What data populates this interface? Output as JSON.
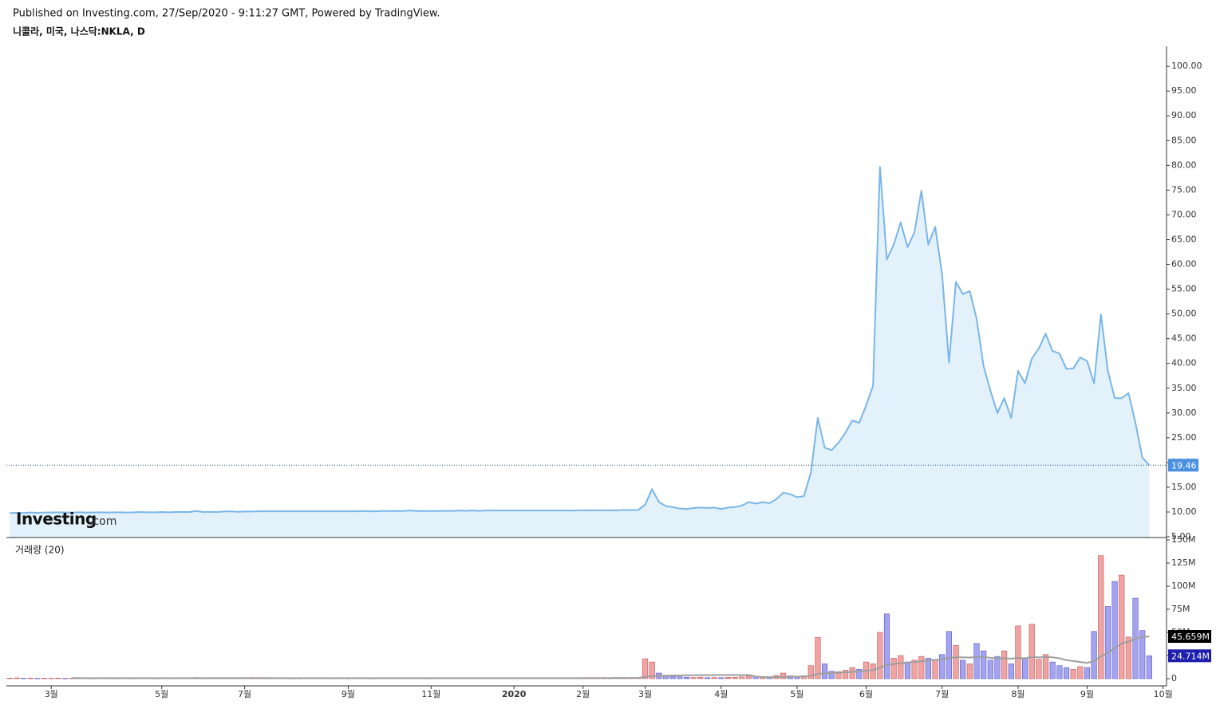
{
  "header": {
    "published": "Published on Investing.com, 27/Sep/2020 - 9:11:27 GMT, Powered by TradingView.",
    "symbol": "니콜라, 미국, 나스닥:NKLA, D"
  },
  "watermark": {
    "brand": "Investing",
    "domain": ".com"
  },
  "chart_data": {
    "type": "area",
    "color": "#7ab6e8",
    "fill": "#e2f1fa",
    "last_value_line": true,
    "last_label_color": "#4a90e2",
    "x": [
      "2019-02",
      "2019-02",
      "2019-02",
      "2019-02",
      "2019-02",
      "2019-02",
      "2019-03",
      "2019-03",
      "2019-03",
      "2019-03",
      "2019-03",
      "2019-03",
      "2019-03",
      "2019-03",
      "2019-03",
      "2019-04",
      "2019-04",
      "2019-04",
      "2019-04",
      "2019-04",
      "2019-04",
      "2019-04",
      "2019-05",
      "2019-05",
      "2019-05",
      "2019-05",
      "2019-05",
      "2019-05",
      "2019-05",
      "2019-06",
      "2019-06",
      "2019-06",
      "2019-06",
      "2019-06",
      "2019-07",
      "2019-07",
      "2019-07",
      "2019-07",
      "2019-07",
      "2019-07",
      "2019-07",
      "2019-07",
      "2019-08",
      "2019-08",
      "2019-08",
      "2019-08",
      "2019-08",
      "2019-08",
      "2019-08",
      "2019-09",
      "2019-09",
      "2019-09",
      "2019-09",
      "2019-09",
      "2019-09",
      "2019-10",
      "2019-10",
      "2019-10",
      "2019-10",
      "2019-10",
      "2019-10",
      "2019-11",
      "2019-11",
      "2019-11",
      "2019-11",
      "2019-11",
      "2019-11",
      "2019-12",
      "2019-12",
      "2019-12",
      "2019-12",
      "2019-12",
      "2019-12",
      "2020-01",
      "2020-01",
      "2020-01",
      "2020-01",
      "2020-01",
      "2020-01",
      "2020-01",
      "2020-01",
      "2020-01",
      "2020-01",
      "2020-02",
      "2020-02",
      "2020-02",
      "2020-02",
      "2020-02",
      "2020-02",
      "2020-02",
      "2020-02",
      "2020-02",
      "2020-03",
      "2020-03",
      "2020-03",
      "2020-03",
      "2020-03",
      "2020-03",
      "2020-03",
      "2020-03",
      "2020-03",
      "2020-03",
      "2020-03",
      "2020-04",
      "2020-04",
      "2020-04",
      "2020-04",
      "2020-04",
      "2020-04",
      "2020-04",
      "2020-04",
      "2020-04",
      "2020-04",
      "2020-04",
      "2020-05",
      "2020-05",
      "2020-05",
      "2020-05",
      "2020-05",
      "2020-05",
      "2020-05",
      "2020-05",
      "2020-05",
      "2020-05",
      "2020-06",
      "2020-06",
      "2020-06",
      "2020-06",
      "2020-06",
      "2020-06",
      "2020-06",
      "2020-06",
      "2020-06",
      "2020-06",
      "2020-06",
      "2020-07",
      "2020-07",
      "2020-07",
      "2020-07",
      "2020-07",
      "2020-07",
      "2020-07",
      "2020-07",
      "2020-07",
      "2020-07",
      "2020-07",
      "2020-08",
      "2020-08",
      "2020-08",
      "2020-08",
      "2020-08",
      "2020-08",
      "2020-08",
      "2020-08",
      "2020-08",
      "2020-08",
      "2020-09",
      "2020-09",
      "2020-09",
      "2020-09",
      "2020-09",
      "2020-09",
      "2020-09",
      "2020-09",
      "2020-09",
      "2020-09",
      "2020-09",
      "2020-10"
    ],
    "values": [
      9.8,
      9.85,
      9.8,
      9.9,
      9.85,
      9.9,
      9.9,
      9.95,
      9.9,
      9.9,
      9.95,
      9.9,
      9.9,
      9.95,
      9.9,
      9.95,
      9.95,
      9.9,
      9.95,
      10.0,
      9.95,
      9.95,
      10.0,
      9.95,
      10.0,
      10.0,
      10.0,
      10.2,
      10.0,
      10.05,
      10.0,
      10.1,
      10.15,
      10.05,
      10.1,
      10.1,
      10.15,
      10.15,
      10.15,
      10.15,
      10.15,
      10.15,
      10.15,
      10.15,
      10.15,
      10.15,
      10.15,
      10.15,
      10.15,
      10.15,
      10.15,
      10.2,
      10.15,
      10.15,
      10.2,
      10.2,
      10.2,
      10.2,
      10.3,
      10.2,
      10.2,
      10.2,
      10.2,
      10.25,
      10.2,
      10.3,
      10.25,
      10.3,
      10.25,
      10.3,
      10.3,
      10.3,
      10.3,
      10.3,
      10.3,
      10.3,
      10.3,
      10.3,
      10.3,
      10.3,
      10.3,
      10.3,
      10.3,
      10.35,
      10.35,
      10.35,
      10.35,
      10.35,
      10.35,
      10.4,
      10.4,
      10.4,
      11.5,
      14.6,
      12.0,
      11.2,
      11.0,
      10.7,
      10.6,
      10.8,
      10.9,
      10.8,
      10.9,
      10.6,
      10.9,
      11.0,
      11.3,
      12.0,
      11.7,
      12.0,
      11.8,
      12.6,
      13.9,
      13.6,
      13.0,
      13.2,
      18.0,
      29.0,
      23.0,
      22.5,
      24.0,
      26.0,
      28.5,
      28.0,
      31.5,
      35.5,
      79.7,
      61.0,
      64.0,
      68.5,
      63.5,
      66.5,
      74.9,
      64.0,
      67.6,
      58.0,
      40.2,
      56.5,
      54.0,
      54.6,
      49.0,
      39.5,
      34.5,
      30.0,
      33.0,
      29.0,
      38.5,
      36.0,
      41.0,
      43.0,
      46.0,
      42.5,
      42.0,
      38.9,
      39.0,
      41.2,
      40.5,
      36.0,
      49.9,
      38.5,
      33.0,
      33.0,
      34.0,
      28.0,
      21.0,
      19.46,
      null,
      null
    ],
    "ylim": [
      4.85,
      104.05
    ],
    "yticks": [
      {
        "value": 5,
        "label": "5.00"
      },
      {
        "value": 10,
        "label": "10.00"
      },
      {
        "value": 15,
        "label": "15.00"
      },
      {
        "value": 20,
        "label": "20.00"
      },
      {
        "value": 25,
        "label": "25.00"
      },
      {
        "value": 30,
        "label": "30.00"
      },
      {
        "value": 35,
        "label": "35.00"
      },
      {
        "value": 40,
        "label": "40.00"
      },
      {
        "value": 45,
        "label": "45.00"
      },
      {
        "value": 50,
        "label": "50.00"
      },
      {
        "value": 55,
        "label": "55.00"
      },
      {
        "value": 60,
        "label": "60.00"
      },
      {
        "value": 65,
        "label": "65.00"
      },
      {
        "value": 70,
        "label": "70.00"
      },
      {
        "value": 75,
        "label": "75.00"
      },
      {
        "value": 80,
        "label": "80.00"
      },
      {
        "value": 85,
        "label": "85.00"
      },
      {
        "value": 90,
        "label": "90.00"
      },
      {
        "value": 95,
        "label": "95.00"
      },
      {
        "value": 100,
        "label": "100.00"
      }
    ],
    "xticks": [
      {
        "value": "2019-03",
        "label": "3월"
      },
      {
        "value": "2019-05",
        "label": "5월"
      },
      {
        "value": "2019-07",
        "label": "7월"
      },
      {
        "value": "2019-09",
        "label": "9월"
      },
      {
        "value": "2019-11",
        "label": "11월"
      },
      {
        "value": "2020-01",
        "label": "2020"
      },
      {
        "value": "2020-02",
        "label": "2월"
      },
      {
        "value": "2020-03",
        "label": "3월"
      },
      {
        "value": "2020-04",
        "label": "4월"
      },
      {
        "value": "2020-05",
        "label": "5월"
      },
      {
        "value": "2020-06",
        "label": "6월"
      },
      {
        "value": "2020-07",
        "label": "7월"
      },
      {
        "value": "2020-08",
        "label": "8월"
      },
      {
        "value": "2020-09",
        "label": "9월"
      },
      {
        "value": "2020-10",
        "label": "10월"
      }
    ],
    "volume": {
      "type": "bar",
      "title": "거래량 (20)",
      "ylim": [
        -7.8,
        152.6
      ],
      "yticks": [
        0,
        {
          "value": 25,
          "label": "25M"
        },
        {
          "value": 50,
          "label": "50M"
        },
        {
          "value": 75,
          "label": "75M"
        },
        {
          "value": 100,
          "label": "100M"
        },
        {
          "value": 125,
          "label": "125M"
        },
        {
          "value": 150,
          "label": "150M"
        }
      ],
      "series": [
        {
          "type": "bar",
          "up_color": "#f0a3a3",
          "down_color": "#a3a3f0",
          "up_stroke": "#c25757",
          "down_stroke": "#5757c2",
          "label_color": "#1f1fae",
          "last_label": "24.714M",
          "values": [
            0.5,
            0.8,
            0.4,
            0.6,
            0.3,
            0.5,
            0.4,
            0.6,
            0.3,
            0.5,
            0.7,
            0.4,
            0.3,
            0.5,
            0.4,
            0.3,
            0.4,
            0.6,
            0.3,
            0.5,
            0.4,
            0.3,
            0.4,
            0.5,
            0.3,
            0.6,
            0.4,
            1.2,
            0.5,
            0.6,
            0.4,
            0.8,
            0.9,
            0.5,
            0.5,
            0.4,
            0.6,
            0.4,
            0.3,
            0.5,
            0.4,
            0.3,
            0.3,
            0.4,
            0.3,
            0.5,
            0.4,
            0.3,
            0.4,
            0.3,
            0.4,
            0.6,
            0.4,
            0.3,
            0.5,
            0.4,
            0.5,
            0.4,
            0.9,
            0.5,
            0.4,
            0.3,
            0.4,
            0.6,
            0.4,
            0.7,
            0.5,
            0.6,
            0.4,
            0.5,
            0.4,
            0.5,
            0.4,
            0.5,
            0.6,
            0.4,
            0.5,
            0.7,
            0.5,
            0.4,
            0.6,
            0.5,
            0.4,
            0.5,
            0.6,
            0.5,
            0.7,
            0.6,
            1.2,
            0.9,
            0.8,
            1.0,
            21.5,
            18.0,
            6.0,
            3.5,
            2.5,
            2.0,
            1.5,
            1.2,
            1.5,
            1.0,
            1.2,
            1.0,
            1.4,
            1.5,
            2.0,
            3.0,
            2.0,
            2.2,
            1.8,
            3.5,
            6.0,
            3.0,
            2.5,
            3.0,
            14.0,
            44.5,
            16.0,
            8.0,
            7.5,
            9.0,
            12.0,
            10.0,
            18.0,
            16.0,
            50.0,
            70.0,
            22.0,
            25.0,
            18.0,
            20.0,
            24.0,
            22.0,
            20.0,
            26.0,
            51.0,
            36.0,
            20.0,
            16.0,
            38.0,
            30.0,
            20.0,
            24.0,
            30.0,
            16.0,
            57.0,
            22.0,
            59.0,
            21.0,
            26.0,
            18.0,
            14.0,
            12.0,
            10.0,
            13.0,
            12.0,
            51.0,
            133.0,
            78.0,
            105.0,
            112.0,
            45.0,
            87.0,
            52.0,
            24.714,
            null,
            null
          ]
        },
        {
          "type": "line",
          "color": "#9e9e9e",
          "label_color": "#000000",
          "last_label": "45.659M",
          "values": [
            null,
            null,
            null,
            null,
            null,
            null,
            null,
            null,
            null,
            0.6,
            0.6,
            0.55,
            0.55,
            0.5,
            0.5,
            0.5,
            0.5,
            0.5,
            0.5,
            0.5,
            0.5,
            0.5,
            0.5,
            0.5,
            0.5,
            0.5,
            0.5,
            0.55,
            0.55,
            0.6,
            0.6,
            0.6,
            0.65,
            0.65,
            0.6,
            0.6,
            0.6,
            0.6,
            0.55,
            0.55,
            0.5,
            0.5,
            0.45,
            0.45,
            0.45,
            0.45,
            0.45,
            0.45,
            0.45,
            0.45,
            0.45,
            0.45,
            0.45,
            0.45,
            0.45,
            0.45,
            0.5,
            0.5,
            0.5,
            0.5,
            0.5,
            0.5,
            0.5,
            0.5,
            0.5,
            0.5,
            0.5,
            0.5,
            0.5,
            0.5,
            0.5,
            0.5,
            0.5,
            0.5,
            0.5,
            0.5,
            0.5,
            0.5,
            0.5,
            0.5,
            0.5,
            0.5,
            0.5,
            0.6,
            0.6,
            0.6,
            0.6,
            0.65,
            0.7,
            0.7,
            0.75,
            0.8,
            1.8,
            2.7,
            3.0,
            3.2,
            3.4,
            3.5,
            3.6,
            3.7,
            3.8,
            3.8,
            3.9,
            3.9,
            4.0,
            4.0,
            4.0,
            3.9,
            2.3,
            1.8,
            1.6,
            1.7,
            1.9,
            2.1,
            2.2,
            2.4,
            3.0,
            5.1,
            5.8,
            6.1,
            6.4,
            6.9,
            7.4,
            7.8,
            8.6,
            9.3,
            11.8,
            14.8,
            15.8,
            16.8,
            17.3,
            18.0,
            18.8,
            19.6,
            20.3,
            21.0,
            22.5,
            23.0,
            23.0,
            22.8,
            23.5,
            23.5,
            22.5,
            22.0,
            22.0,
            21.5,
            22.5,
            22.0,
            23.5,
            23.0,
            23.5,
            23.0,
            22.0,
            20.0,
            19.0,
            18.0,
            17.0,
            19.0,
            24.0,
            28.0,
            33.0,
            38.0,
            40.0,
            43.0,
            45.0,
            45.659,
            null,
            null
          ]
        }
      ]
    }
  }
}
